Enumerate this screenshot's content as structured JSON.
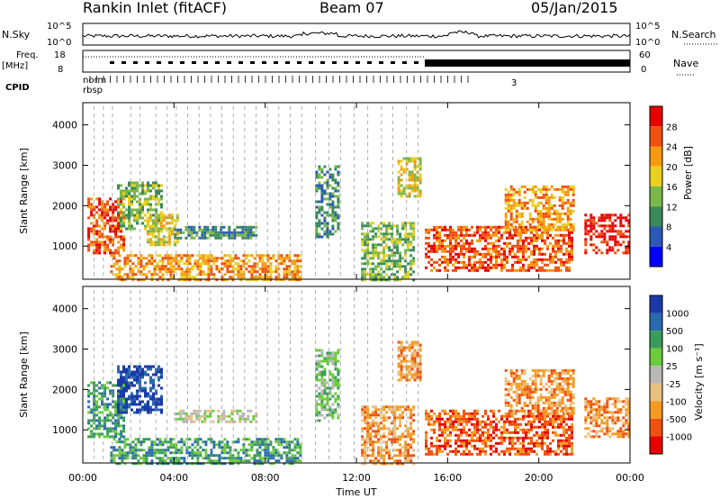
{
  "header": {
    "title": "Rankin Inlet (fitACF)",
    "beam": "Beam 07",
    "date": "05/Jan/2015"
  },
  "params": {
    "nsky_label": "N.Sky",
    "nsky_ticks": [
      "10^5",
      "10^0"
    ],
    "nsearch_label": "N.Search",
    "nsearch_ticks": [
      "10^5",
      "10^0"
    ],
    "freq_label": "Freq.",
    "freq_unit": "[MHz]",
    "freq_ticks": [
      "18",
      "8"
    ],
    "nave_label": "Nave",
    "nave_ticks": [
      "60",
      "0"
    ],
    "cpid_label": "CPID",
    "cpid_text": "rbsp",
    "cpid_text2": "norm",
    "cpid_end": "3"
  },
  "chart_data": [
    {
      "type": "heatmap",
      "name": "power",
      "ylabel": "Slant Range [km]",
      "ylim": [
        180,
        4550
      ],
      "yticks": [
        "1000",
        "2000",
        "3000",
        "4000"
      ],
      "colorbar_label": "Power [dB]",
      "colorbar_ticks": [
        "4",
        "8",
        "12",
        "16",
        "20",
        "24",
        "28"
      ],
      "colors": [
        "#0000ff",
        "#2a5ab5",
        "#3a8a5a",
        "#7ab84a",
        "#e8d020",
        "#f59a10",
        "#f05010",
        "#e80000"
      ],
      "echo_regions": [
        {
          "t": [
            0.2,
            1.8
          ],
          "r": [
            800,
            2200
          ],
          "level": 6
        },
        {
          "t": [
            1.5,
            3.5
          ],
          "r": [
            1400,
            2600
          ],
          "level": 3
        },
        {
          "t": [
            2.8,
            4.2
          ],
          "r": [
            1000,
            1800
          ],
          "level": 4
        },
        {
          "t": [
            1.2,
            9.5
          ],
          "r": [
            180,
            800
          ],
          "level": 5
        },
        {
          "t": [
            4.0,
            7.6
          ],
          "r": [
            1200,
            1500
          ],
          "level": 2
        },
        {
          "t": [
            10.2,
            11.2
          ],
          "r": [
            1200,
            3000
          ],
          "level": 2
        },
        {
          "t": [
            12.2,
            14.5
          ],
          "r": [
            180,
            1600
          ],
          "level": 3
        },
        {
          "t": [
            13.8,
            14.8
          ],
          "r": [
            2200,
            3200
          ],
          "level": 4
        },
        {
          "t": [
            15.0,
            21.5
          ],
          "r": [
            400,
            1500
          ],
          "level": 6
        },
        {
          "t": [
            18.5,
            21.5
          ],
          "r": [
            1400,
            2500
          ],
          "level": 5
        },
        {
          "t": [
            22.0,
            24.0
          ],
          "r": [
            800,
            1800
          ],
          "level": 7
        }
      ]
    },
    {
      "type": "heatmap",
      "name": "velocity",
      "ylabel": "Slant Range [km]",
      "ylim": [
        180,
        4550
      ],
      "yticks": [
        "1000",
        "2000",
        "3000",
        "4000"
      ],
      "xlabel": "Time UT",
      "xticks": [
        "00:00",
        "04:00",
        "08:00",
        "12:00",
        "16:00",
        "20:00",
        "00:00"
      ],
      "xlim": [
        0,
        24
      ],
      "colorbar_label": "Velocity [m s⁻¹]",
      "colorbar_ticks": [
        "1000",
        "500",
        "100",
        "25",
        "-25",
        "-100",
        "-500",
        "-1000"
      ],
      "colors": [
        "#1a3aa8",
        "#2a6ab0",
        "#3a9a5a",
        "#6acc3a",
        "#b8b8b8",
        "#e8c080",
        "#f59a20",
        "#f05010",
        "#e80000"
      ],
      "echo_regions": [
        {
          "t": [
            0.2,
            1.8
          ],
          "r": [
            800,
            2200
          ],
          "level": 2
        },
        {
          "t": [
            1.5,
            3.5
          ],
          "r": [
            1400,
            2600
          ],
          "level": 0
        },
        {
          "t": [
            1.2,
            9.5
          ],
          "r": [
            180,
            800
          ],
          "level": 2
        },
        {
          "t": [
            4.0,
            7.6
          ],
          "r": [
            1200,
            1500
          ],
          "level": 4
        },
        {
          "t": [
            10.2,
            11.2
          ],
          "r": [
            1200,
            3000
          ],
          "level": 3
        },
        {
          "t": [
            12.2,
            14.5
          ],
          "r": [
            180,
            1600
          ],
          "level": 6
        },
        {
          "t": [
            13.8,
            14.8
          ],
          "r": [
            2200,
            3200
          ],
          "level": 6
        },
        {
          "t": [
            15.0,
            21.5
          ],
          "r": [
            400,
            1500
          ],
          "level": 7
        },
        {
          "t": [
            18.5,
            21.5
          ],
          "r": [
            1400,
            2500
          ],
          "level": 6
        },
        {
          "t": [
            22.0,
            24.0
          ],
          "r": [
            800,
            1800
          ],
          "level": 6
        }
      ]
    }
  ]
}
